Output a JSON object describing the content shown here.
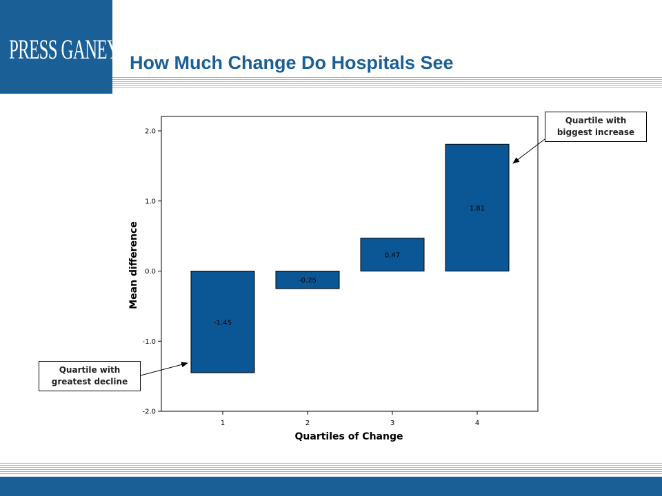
{
  "header": {
    "logo_text": "PRESS GANEY",
    "title": "How Much Change Do Hospitals See"
  },
  "colors": {
    "brand": "#1a5f96",
    "bar_fill": "#0b5694"
  },
  "chart_data": {
    "type": "bar",
    "categories": [
      "1",
      "2",
      "3",
      "4"
    ],
    "values": [
      -1.45,
      -0.25,
      0.47,
      1.81
    ],
    "data_labels": [
      "-1.45",
      "-0.25",
      "0.47",
      "1.81"
    ],
    "title": "",
    "xlabel": "Quartiles of Change",
    "ylabel": "Mean difference",
    "ylim": [
      -2.0,
      2.0
    ],
    "yticks": [
      2.0,
      1.0,
      0.0,
      -1.0,
      -2.0
    ],
    "ytick_labels": [
      "2.0",
      "1.0",
      "0.0",
      "-1.0",
      "-2.0"
    ],
    "grid": false,
    "annotations": [
      {
        "line1": "Quartile with",
        "line2": "biggest increase",
        "points_to": "4"
      },
      {
        "line1": "Quartile with",
        "line2": "greatest decline",
        "points_to": "1"
      }
    ]
  }
}
